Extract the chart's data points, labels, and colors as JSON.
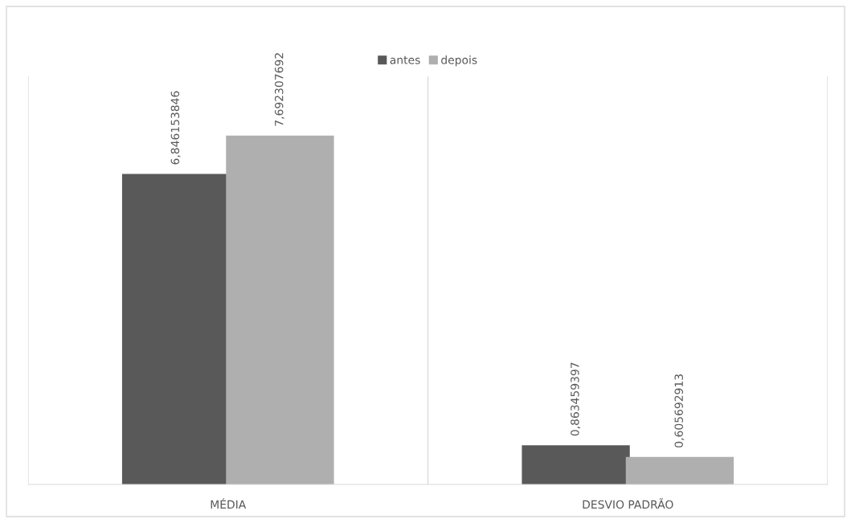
{
  "chart_data": {
    "type": "bar",
    "categories": [
      "MÉDIA",
      "DESVIO PADRÃO"
    ],
    "series": [
      {
        "name": "antes",
        "color": "#595959",
        "values": [
          6.846153846,
          0.863459397
        ],
        "value_labels": [
          "6,846153846",
          "0,863459397"
        ]
      },
      {
        "name": "depois",
        "color": "#afafaf",
        "values": [
          7.692307692,
          0.605692913
        ],
        "value_labels": [
          "7,692307692",
          "0,605692913"
        ]
      }
    ],
    "legend": "top",
    "grid": false
  }
}
